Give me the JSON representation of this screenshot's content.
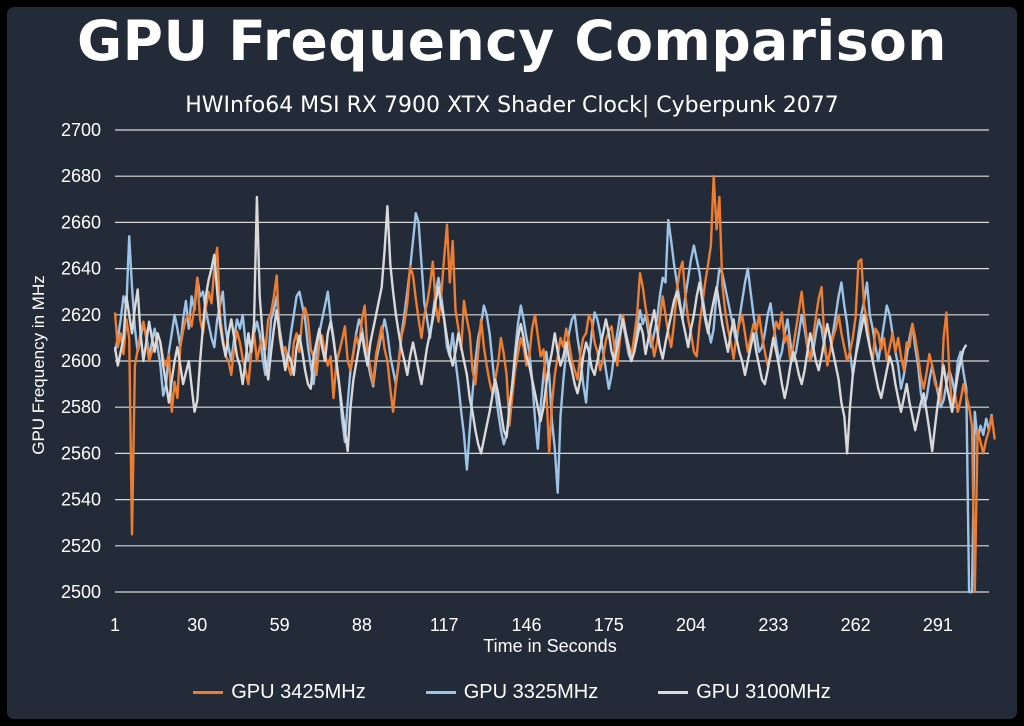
{
  "chart_data": {
    "type": "line",
    "title": "GPU Frequency Comparison",
    "subtitle": "HWInfo64 MSI RX 7900 XTX Shader Clock| Cyberpunk 2077",
    "xlabel": "Time in Seconds",
    "ylabel": "GPU Frequency in MHz",
    "xlim": [
      1,
      309
    ],
    "ylim": [
      2500,
      2700
    ],
    "x_ticks": [
      "1",
      "30",
      "59",
      "88",
      "117",
      "146",
      "175",
      "204",
      "233",
      "262",
      "291"
    ],
    "y_ticks": [
      "2700",
      "2680",
      "2660",
      "2640",
      "2620",
      "2600",
      "2580",
      "2560",
      "2540",
      "2520",
      "2500"
    ],
    "grid": "horizontal",
    "legend_position": "bottom",
    "x_start": 1,
    "series": [
      {
        "name": "GPU 3425MHz",
        "color": "#ed7d31",
        "values": [
          2621,
          2606,
          2612,
          2603,
          2618,
          2610,
          2525,
          2598,
          2605,
          2612,
          2617,
          2610,
          2600,
          2604,
          2606,
          2612,
          2608,
          2601,
          2598,
          2603,
          2578,
          2591,
          2584,
          2606,
          2613,
          2618,
          2620,
          2615,
          2624,
          2636,
          2618,
          2612,
          2623,
          2630,
          2625,
          2640,
          2649,
          2620,
          2610,
          2602,
          2600,
          2594,
          2606,
          2613,
          2608,
          2601,
          2596,
          2590,
          2603,
          2612,
          2600,
          2606,
          2611,
          2605,
          2618,
          2621,
          2628,
          2637,
          2610,
          2603,
          2606,
          2598,
          2594,
          2608,
          2612,
          2604,
          2619,
          2623,
          2618,
          2605,
          2602,
          2594,
          2608,
          2611,
          2603,
          2598,
          2602,
          2584,
          2599,
          2604,
          2609,
          2615,
          2600,
          2596,
          2603,
          2611,
          2606,
          2618,
          2624,
          2604,
          2597,
          2590,
          2603,
          2609,
          2615,
          2605,
          2600,
          2588,
          2578,
          2590,
          2599,
          2611,
          2616,
          2625,
          2641,
          2637,
          2627,
          2618,
          2610,
          2620,
          2625,
          2633,
          2643,
          2624,
          2617,
          2629,
          2645,
          2659,
          2634,
          2652,
          2622,
          2614,
          2605,
          2626,
          2618,
          2612,
          2596,
          2590,
          2604,
          2618,
          2606,
          2598,
          2591,
          2586,
          2592,
          2599,
          2610,
          2603,
          2594,
          2572,
          2585,
          2596,
          2603,
          2610,
          2606,
          2598,
          2602,
          2614,
          2620,
          2611,
          2602,
          2605,
          2588,
          2560,
          2582,
          2594,
          2602,
          2610,
          2606,
          2614,
          2608,
          2600,
          2596,
          2592,
          2603,
          2610,
          2612,
          2620,
          2617,
          2608,
          2604,
          2596,
          2601,
          2609,
          2613,
          2615,
          2606,
          2598,
          2610,
          2620,
          2612,
          2607,
          2602,
          2611,
          2620,
          2638,
          2632,
          2623,
          2616,
          2610,
          2602,
          2608,
          2618,
          2628,
          2620,
          2612,
          2606,
          2616,
          2631,
          2639,
          2643,
          2628,
          2618,
          2612,
          2604,
          2602,
          2616,
          2625,
          2634,
          2642,
          2650,
          2680,
          2657,
          2671,
          2633,
          2622,
          2614,
          2608,
          2601,
          2611,
          2616,
          2620,
          2612,
          2604,
          2610,
          2616,
          2613,
          2620,
          2611,
          2604,
          2598,
          2602,
          2609,
          2617,
          2614,
          2621,
          2608,
          2611,
          2600,
          2606,
          2614,
          2622,
          2630,
          2618,
          2607,
          2600,
          2610,
          2619,
          2627,
          2632,
          2609,
          2598,
          2604,
          2610,
          2614,
          2620,
          2612,
          2606,
          2600,
          2604,
          2610,
          2619,
          2643,
          2644,
          2624,
          2618,
          2606,
          2600,
          2614,
          2612,
          2605,
          2610,
          2600,
          2606,
          2612,
          2604,
          2610,
          2602,
          2596,
          2608,
          2606,
          2616,
          2610,
          2602,
          2593,
          2588,
          2595,
          2603,
          2598,
          2590,
          2588,
          2582,
          2610,
          2621,
          2596,
          2580,
          2586,
          2578,
          2583,
          2590,
          2585,
          2580,
          2572,
          2500,
          2570,
          2565,
          2560,
          2566,
          2570,
          2576,
          2566
        ]
      },
      {
        "name": "GPU 3325MHz",
        "color": "#9dc3e6",
        "values": [
          2604,
          2610,
          2618,
          2628,
          2624,
          2654,
          2632,
          2614,
          2604,
          2610,
          2616,
          2612,
          2602,
          2608,
          2614,
          2606,
          2598,
          2585,
          2590,
          2604,
          2612,
          2620,
          2614,
          2606,
          2618,
          2626,
          2614,
          2628,
          2622,
          2636,
          2628,
          2630,
          2622,
          2616,
          2610,
          2606,
          2618,
          2624,
          2630,
          2614,
          2606,
          2600,
          2610,
          2618,
          2614,
          2620,
          2608,
          2600,
          2606,
          2612,
          2617,
          2612,
          2601,
          2594,
          2600,
          2618,
          2622,
          2628,
          2614,
          2606,
          2598,
          2602,
          2612,
          2620,
          2628,
          2630,
          2624,
          2618,
          2606,
          2598,
          2590,
          2602,
          2612,
          2618,
          2624,
          2630,
          2618,
          2610,
          2600,
          2590,
          2575,
          2565,
          2582,
          2596,
          2604,
          2612,
          2618,
          2614,
          2606,
          2600,
          2594,
          2589,
          2600,
          2606,
          2612,
          2618,
          2612,
          2602,
          2596,
          2590,
          2600,
          2612,
          2620,
          2630,
          2640,
          2652,
          2664,
          2660,
          2642,
          2625,
          2618,
          2610,
          2620,
          2630,
          2636,
          2628,
          2618,
          2606,
          2602,
          2612,
          2600,
          2590,
          2578,
          2568,
          2553,
          2570,
          2586,
          2600,
          2610,
          2616,
          2624,
          2620,
          2612,
          2600,
          2588,
          2578,
          2570,
          2564,
          2568,
          2576,
          2590,
          2604,
          2616,
          2624,
          2618,
          2610,
          2604,
          2592,
          2575,
          2562,
          2580,
          2594,
          2604,
          2594,
          2574,
          2562,
          2543,
          2576,
          2592,
          2604,
          2612,
          2618,
          2620,
          2610,
          2602,
          2590,
          2582,
          2600,
          2612,
          2621,
          2618,
          2612,
          2604,
          2596,
          2588,
          2594,
          2604,
          2612,
          2620,
          2617,
          2610,
          2603,
          2600,
          2608,
          2614,
          2622,
          2616,
          2620,
          2612,
          2606,
          2612,
          2618,
          2628,
          2636,
          2634,
          2661,
          2652,
          2642,
          2634,
          2626,
          2618,
          2628,
          2636,
          2644,
          2650,
          2644,
          2638,
          2628,
          2620,
          2614,
          2608,
          2614,
          2630,
          2640,
          2638,
          2632,
          2626,
          2620,
          2614,
          2608,
          2618,
          2626,
          2634,
          2640,
          2630,
          2620,
          2612,
          2604,
          2606,
          2612,
          2620,
          2625,
          2616,
          2608,
          2600,
          2604,
          2612,
          2618,
          2608,
          2600,
          2604,
          2612,
          2620,
          2614,
          2606,
          2600,
          2604,
          2612,
          2618,
          2614,
          2606,
          2599,
          2604,
          2612,
          2620,
          2628,
          2634,
          2624,
          2616,
          2604,
          2594,
          2602,
          2612,
          2620,
          2626,
          2634,
          2620,
          2614,
          2606,
          2600,
          2608,
          2616,
          2624,
          2620,
          2612,
          2604,
          2598,
          2588,
          2594,
          2602,
          2610,
          2616,
          2606,
          2598,
          2586,
          2580,
          2584,
          2592,
          2598,
          2592,
          2586,
          2580,
          2583,
          2590,
          2596,
          2592,
          2586,
          2600,
          2604,
          2595,
          2588,
          2500,
          2500,
          2578,
          2566,
          2572,
          2568,
          2575,
          2570,
          2577
        ]
      },
      {
        "name": "GPU 3100MHz",
        "color": "#d9d9d9",
        "values": [
          2606,
          2598,
          2604,
          2610,
          2628,
          2620,
          2612,
          2623,
          2631,
          2612,
          2600,
          2608,
          2617,
          2610,
          2604,
          2612,
          2608,
          2598,
          2590,
          2582,
          2592,
          2600,
          2606,
          2598,
          2590,
          2595,
          2600,
          2589,
          2578,
          2583,
          2600,
          2615,
          2628,
          2635,
          2640,
          2646,
          2630,
          2616,
          2608,
          2602,
          2612,
          2618,
          2610,
          2602,
          2598,
          2590,
          2600,
          2612,
          2604,
          2616,
          2671,
          2628,
          2612,
          2600,
          2592,
          2604,
          2614,
          2622,
          2612,
          2604,
          2596,
          2603,
          2600,
          2594,
          2606,
          2611,
          2604,
          2596,
          2590,
          2588,
          2602,
          2608,
          2614,
          2606,
          2600,
          2612,
          2617,
          2609,
          2600,
          2590,
          2580,
          2570,
          2561,
          2580,
          2592,
          2599,
          2606,
          2612,
          2604,
          2598,
          2608,
          2614,
          2620,
          2626,
          2632,
          2648,
          2667,
          2642,
          2630,
          2620,
          2612,
          2605,
          2600,
          2594,
          2602,
          2608,
          2602,
          2596,
          2590,
          2598,
          2606,
          2612,
          2618,
          2626,
          2632,
          2624,
          2618,
          2610,
          2603,
          2598,
          2604,
          2612,
          2606,
          2600,
          2594,
          2584,
          2578,
          2570,
          2564,
          2560,
          2566,
          2572,
          2578,
          2585,
          2592,
          2586,
          2578,
          2570,
          2567,
          2580,
          2590,
          2602,
          2610,
          2616,
          2610,
          2602,
          2598,
          2592,
          2586,
          2580,
          2574,
          2580,
          2590,
          2598,
          2604,
          2612,
          2604,
          2598,
          2602,
          2608,
          2601,
          2596,
          2590,
          2586,
          2592,
          2602,
          2608,
          2604,
          2597,
          2594,
          2600,
          2606,
          2612,
          2618,
          2612,
          2604,
          2600,
          2606,
          2612,
          2618,
          2612,
          2606,
          2600,
          2604,
          2610,
          2616,
          2612,
          2603,
          2610,
          2616,
          2622,
          2614,
          2606,
          2601,
          2608,
          2614,
          2620,
          2626,
          2630,
          2624,
          2618,
          2612,
          2606,
          2614,
          2620,
          2628,
          2634,
          2626,
          2618,
          2612,
          2620,
          2626,
          2632,
          2624,
          2616,
          2610,
          2604,
          2612,
          2618,
          2610,
          2604,
          2600,
          2594,
          2600,
          2606,
          2612,
          2604,
          2598,
          2592,
          2590,
          2596,
          2603,
          2610,
          2604,
          2598,
          2590,
          2584,
          2590,
          2598,
          2604,
          2600,
          2594,
          2590,
          2596,
          2604,
          2612,
          2606,
          2600,
          2596,
          2602,
          2609,
          2616,
          2610,
          2604,
          2598,
          2592,
          2582,
          2576,
          2560,
          2580,
          2594,
          2602,
          2608,
          2614,
          2620,
          2612,
          2606,
          2600,
          2594,
          2588,
          2584,
          2590,
          2596,
          2602,
          2598,
          2590,
          2584,
          2578,
          2584,
          2590,
          2582,
          2576,
          2570,
          2576,
          2582,
          2586,
          2578,
          2570,
          2561,
          2572,
          2582,
          2590,
          2598,
          2590,
          2584,
          2578,
          2586,
          2594,
          2600,
          2605,
          2607
        ]
      }
    ]
  }
}
